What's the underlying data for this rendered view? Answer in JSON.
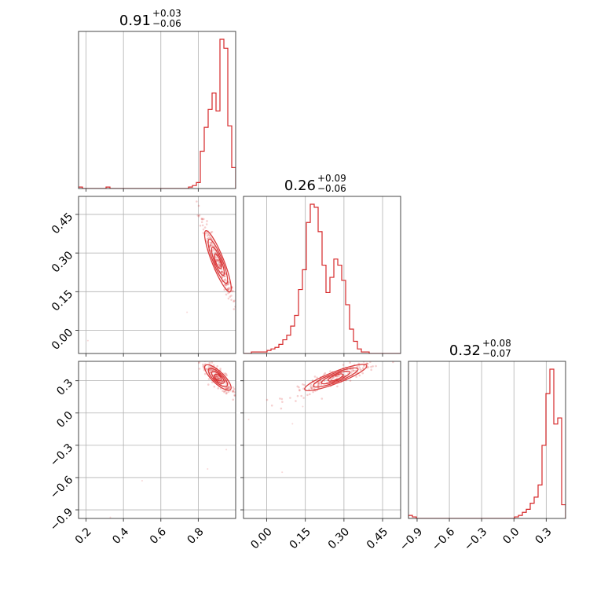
{
  "chart_data": {
    "type": "corner",
    "color": "#d62728",
    "grid": true,
    "titles": [
      {
        "main": "0.91",
        "plus": "+0.03",
        "minus": "−0.06"
      },
      {
        "main": "0.26",
        "plus": "+0.09",
        "minus": "−0.06"
      },
      {
        "main": "0.32",
        "plus": "+0.08",
        "minus": "−0.07"
      }
    ],
    "params": [
      {
        "range": [
          0.16,
          1.0
        ],
        "ticks": [
          0.2,
          0.4,
          0.6,
          0.8
        ],
        "tick_labels": [
          "0.2",
          "0.4",
          "0.6",
          "0.8"
        ]
      },
      {
        "range": [
          -0.09,
          0.52
        ],
        "ticks": [
          0.0,
          0.15,
          0.3,
          0.45
        ],
        "tick_labels": [
          "0.00",
          "0.15",
          "0.30",
          "0.45"
        ]
      },
      {
        "range": [
          -0.98,
          0.48
        ],
        "ticks": [
          -0.9,
          -0.6,
          -0.3,
          0.0,
          0.3
        ],
        "tick_labels": [
          "−0.9",
          "−0.6",
          "−0.3",
          "0.0",
          "0.3"
        ]
      }
    ],
    "histograms": [
      {
        "bin_edges": [
          0.16,
          0.181,
          0.202,
          0.223,
          0.244,
          0.265,
          0.286,
          0.307,
          0.328,
          0.349,
          0.37,
          0.391,
          0.412,
          0.433,
          0.454,
          0.475,
          0.496,
          0.517,
          0.538,
          0.559,
          0.58,
          0.601,
          0.622,
          0.643,
          0.664,
          0.685,
          0.706,
          0.727,
          0.748,
          0.769,
          0.79,
          0.811,
          0.832,
          0.853,
          0.874,
          0.895,
          0.916,
          0.937,
          0.958,
          0.979,
          1.0
        ],
        "counts": [
          1,
          0,
          0,
          0,
          0,
          0,
          0,
          1,
          0,
          0,
          0,
          0,
          0,
          0,
          0,
          0,
          0,
          0,
          0,
          0,
          0,
          0,
          0,
          0,
          0,
          0,
          0,
          0,
          1,
          2,
          4,
          25,
          41,
          53,
          64,
          52,
          100,
          94,
          42,
          14
        ]
      },
      {
        "bin_edges": [
          -0.09,
          -0.07475,
          -0.0595,
          -0.04425,
          -0.029,
          -0.01375,
          0.0015,
          0.01675,
          0.032,
          0.04725,
          0.0625,
          0.07775,
          0.093,
          0.10825,
          0.1235,
          0.13875,
          0.154,
          0.16925,
          0.1845,
          0.19975,
          0.215,
          0.23025,
          0.2455,
          0.26075,
          0.276,
          0.29125,
          0.3065,
          0.32175,
          0.337,
          0.35225,
          0.3675,
          0.38275,
          0.398,
          0.41325,
          0.4285,
          0.44375,
          0.459,
          0.47425,
          0.4895,
          0.50475,
          0.52
        ],
        "counts": [
          0,
          0,
          1,
          1,
          1,
          1,
          2,
          3,
          4,
          6,
          9,
          12,
          18,
          25,
          42,
          55,
          86,
          98,
          96,
          80,
          58,
          40,
          50,
          62,
          58,
          48,
          32,
          16,
          8,
          3,
          1,
          1,
          0,
          0,
          0,
          0,
          0,
          0,
          0,
          0
        ]
      },
      {
        "bin_edges": [
          -0.98,
          -0.9435,
          -0.907,
          -0.8705,
          -0.834,
          -0.7975,
          -0.761,
          -0.7245,
          -0.688,
          -0.6515,
          -0.615,
          -0.5785,
          -0.542,
          -0.5055,
          -0.469,
          -0.4325,
          -0.396,
          -0.3595,
          -0.323,
          -0.2865,
          -0.25,
          -0.2135,
          -0.177,
          -0.1405,
          -0.104,
          -0.0675,
          -0.031,
          0.0055,
          0.042,
          0.0785,
          0.115,
          0.1515,
          0.188,
          0.2245,
          0.261,
          0.2975,
          0.334,
          0.3705,
          0.407,
          0.4435,
          0.48
        ],
        "counts": [
          2,
          1,
          0,
          0,
          0,
          0,
          0,
          0,
          0,
          0,
          0,
          0,
          0,
          0,
          0,
          0,
          0,
          0,
          0,
          0,
          0,
          0,
          0,
          0,
          0,
          0,
          0,
          1,
          2,
          4,
          6,
          10,
          14,
          22,
          48,
          82,
          98,
          62,
          66,
          9
        ]
      }
    ],
    "joint_samples": [
      {
        "pair": [
          0,
          1
        ],
        "mean": [
          0.905,
          0.268
        ],
        "sd": [
          0.045,
          0.085
        ],
        "corr": -0.97,
        "n": 190
      },
      {
        "pair": [
          0,
          2
        ],
        "mean": [
          0.905,
          0.33
        ],
        "sd": [
          0.045,
          0.085
        ],
        "corr": -0.88,
        "n": 190
      },
      {
        "pair": [
          1,
          2
        ],
        "mean": [
          0.268,
          0.33
        ],
        "sd": [
          0.085,
          0.085
        ],
        "corr": 0.92,
        "n": 190
      }
    ],
    "outliers": [
      {
        "pair": [
          0,
          1
        ],
        "points": [
          [
            0.21,
            -0.04
          ],
          [
            0.74,
            0.07
          ]
        ]
      },
      {
        "pair": [
          0,
          2
        ],
        "points": [
          [
            0.33,
            -0.97
          ],
          [
            0.5,
            -0.63
          ],
          [
            0.85,
            -0.52
          ],
          [
            0.95,
            -0.34
          ]
        ]
      },
      {
        "pair": [
          1,
          2
        ],
        "points": [
          [
            -0.07,
            -0.06
          ],
          [
            0.06,
            -0.55
          ],
          [
            0.1,
            -0.1
          ],
          [
            0.14,
            0.06
          ]
        ]
      }
    ]
  }
}
